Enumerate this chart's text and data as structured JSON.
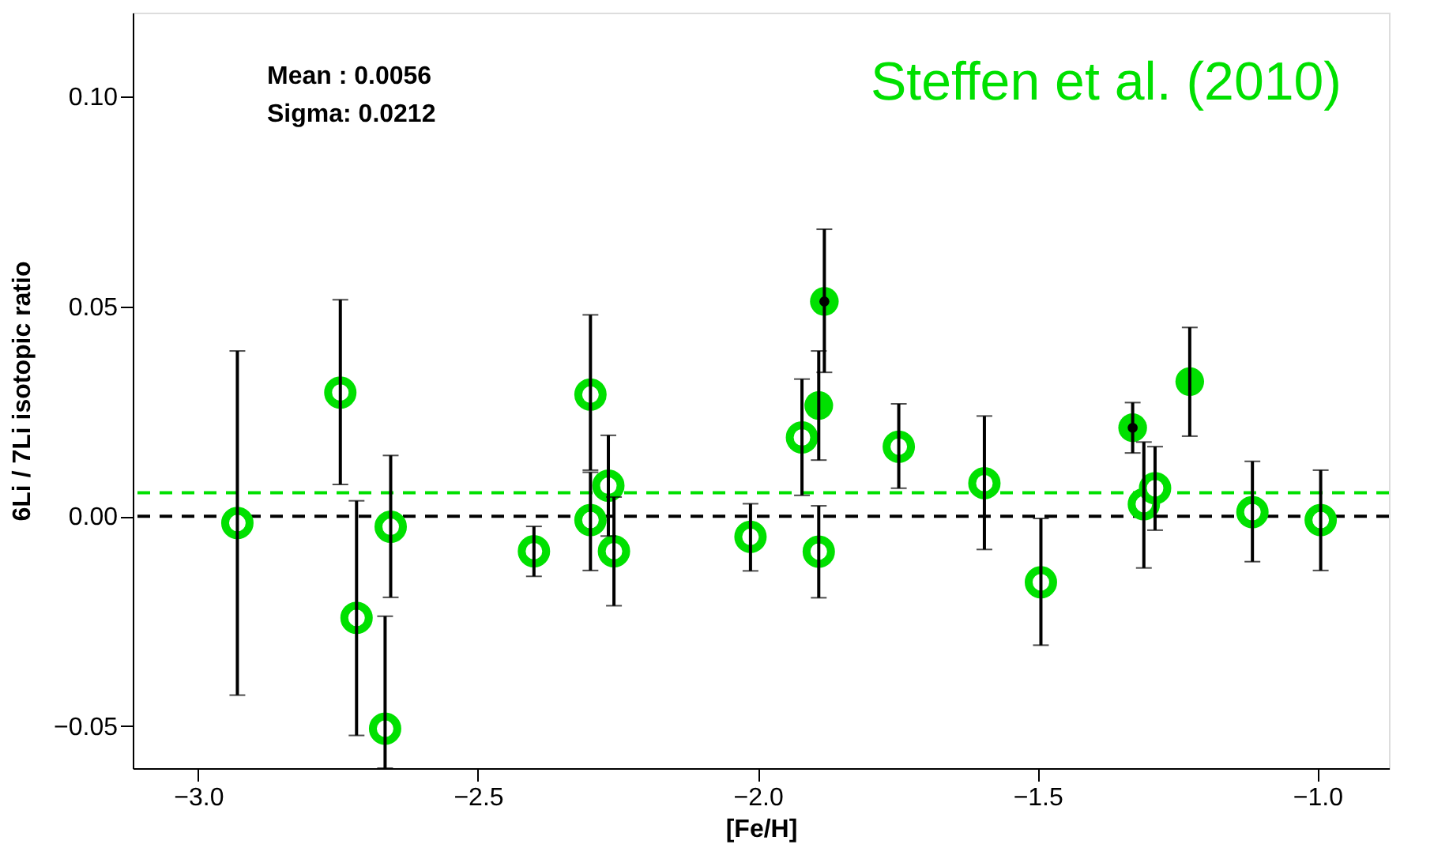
{
  "chart_data": {
    "type": "scatter",
    "xlabel": "[Fe/H]",
    "ylabel": "6Li / 7Li   isotopic ratio",
    "xlim": [
      -3.117,
      -0.872
    ],
    "ylim": [
      -0.06,
      0.12
    ],
    "xticks": [
      {
        "value": -3.0,
        "label": "−3.0"
      },
      {
        "value": -2.5,
        "label": "−2.5"
      },
      {
        "value": -2.0,
        "label": "−2.0"
      },
      {
        "value": -1.5,
        "label": "−1.5"
      },
      {
        "value": -1.0,
        "label": "−1.0"
      }
    ],
    "yticks": [
      {
        "value": -0.05,
        "label": "−0.05"
      },
      {
        "value": 0,
        "label": "0.00"
      },
      {
        "value": 0.05,
        "label": "0.05"
      },
      {
        "value": 0.1,
        "label": "0.10"
      }
    ],
    "grid": false,
    "marker": "circle",
    "series": [
      {
        "color": "#00e000",
        "x": [
          -2.93,
          -2.746,
          -2.717,
          -2.666,
          -2.656,
          -2.4,
          -2.299,
          -2.299,
          -2.267,
          -2.257,
          -2.013,
          -1.921,
          -1.891,
          -1.748,
          -1.595,
          -1.494,
          -1.31,
          -1.29,
          -1.116,
          -0.994
        ],
        "values": [
          -0.0016,
          0.0295,
          -0.0242,
          -0.0506,
          -0.0025,
          -0.0083,
          0.029,
          -0.0009,
          0.0073,
          -0.0083,
          -0.0049,
          0.0188,
          -0.0084,
          0.0166,
          0.0079,
          -0.0157,
          0.0029,
          0.0067,
          0.001,
          -0.0009
        ],
        "errors": [
          [
            -0.0426,
            0.0394
          ],
          [
            0.0076,
            0.0516
          ],
          [
            -0.0522,
            0.0037
          ],
          [
            -0.06,
            -0.0238
          ],
          [
            -0.0193,
            0.0145
          ],
          [
            -0.0143,
            -0.0024
          ],
          [
            0.011,
            0.048
          ],
          [
            -0.0129,
            0.0105
          ],
          [
            -0.0047,
            0.0193
          ],
          [
            -0.0213,
            0.0046
          ],
          [
            -0.013,
            0.003
          ],
          [
            0.005,
            0.0327
          ],
          [
            -0.0194,
            0.0025
          ],
          [
            0.0067,
            0.0268
          ],
          [
            -0.0079,
            0.0239
          ],
          [
            -0.0307,
            -0.0005
          ],
          [
            -0.0123,
            0.0177
          ],
          [
            -0.0033,
            0.0166
          ],
          [
            -0.0108,
            0.0131
          ],
          [
            -0.0129,
            0.011
          ]
        ]
      },
      {
        "color": "#00e000",
        "x": [
          -1.891,
          -1.881,
          -1.33,
          -1.228
        ],
        "values": [
          0.0264,
          0.0512,
          0.0211,
          0.0321
        ],
        "errors": [
          [
            0.0134,
            0.0394
          ],
          [
            0.0343,
            0.0684
          ],
          [
            0.0151,
            0.0271
          ],
          [
            0.0191,
            0.045
          ]
        ]
      },
      {
        "color": "#000000",
        "x": [
          -1.881,
          -1.33
        ],
        "values": [
          0.0512,
          0.0211
        ]
      }
    ],
    "ref_lines": [
      {
        "axis": "y",
        "value": 0,
        "color": "#000000",
        "line_style": "dashed"
      },
      {
        "axis": "y",
        "value": 0.0056,
        "color": "#00e000",
        "line_style": "dashed"
      }
    ],
    "annotations": [
      "Mean :  0.0056",
      "Sigma:  0.0212",
      "Steffen et al. (2010)"
    ]
  }
}
